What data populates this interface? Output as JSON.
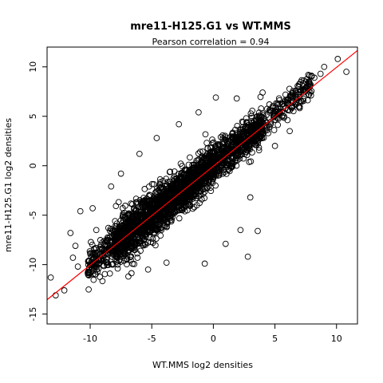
{
  "chart_data": {
    "type": "scatter",
    "title": "mre11-H125.G1 vs WT.MMS",
    "subtitle": "Pearson correlation =  0.94",
    "xlabel": "WT.MMS log2 densities",
    "ylabel": "mre11-H125.G1 log2 densities",
    "xlim": [
      -13.5,
      11.7
    ],
    "ylim": [
      -16.0,
      12.0
    ],
    "x_ticks": [
      -10,
      -5,
      0,
      5,
      10
    ],
    "x_tick_labels": [
      "-10",
      "-5",
      "0",
      "5",
      "10"
    ],
    "y_ticks": [
      -15,
      -10,
      -5,
      0,
      5,
      10
    ],
    "y_tick_labels": [
      "-15",
      "-10",
      "-5",
      "0",
      "5",
      "10"
    ],
    "grid": false,
    "marker": "open-circle",
    "point_color": "#000000",
    "fit_line": {
      "color": "#ff0000",
      "intercept": -0.05,
      "slope": 1.0
    },
    "outlier_points": [
      [
        10.8,
        9.5
      ],
      [
        10.1,
        10.8
      ],
      [
        9.0,
        10.0
      ],
      [
        8.7,
        9.3
      ],
      [
        8.2,
        8.9
      ],
      [
        7.9,
        8.2
      ],
      [
        7.5,
        8.5
      ],
      [
        -12.1,
        -12.6
      ],
      [
        -12.8,
        -13.1
      ],
      [
        -13.2,
        -11.3
      ],
      [
        -11.6,
        -6.8
      ],
      [
        -10.8,
        -4.6
      ],
      [
        -11.2,
        -8.1
      ],
      [
        -9.8,
        -4.3
      ],
      [
        -8.3,
        -2.1
      ],
      [
        -7.5,
        -0.8
      ],
      [
        -6.0,
        1.2
      ],
      [
        -4.6,
        2.8
      ],
      [
        -2.8,
        4.2
      ],
      [
        -1.2,
        5.4
      ],
      [
        0.2,
        6.9
      ],
      [
        1.9,
        6.8
      ],
      [
        2.2,
        -6.5
      ],
      [
        2.8,
        -9.2
      ],
      [
        3.0,
        -3.2
      ],
      [
        3.6,
        -6.6
      ],
      [
        -5.3,
        -10.5
      ],
      [
        -6.9,
        -11.2
      ],
      [
        -8.4,
        -10.9
      ],
      [
        -11.0,
        -10.2
      ],
      [
        -11.4,
        -9.3
      ],
      [
        4.0,
        7.4
      ],
      [
        5.6,
        6.2
      ],
      [
        6.4,
        7.0
      ],
      [
        5.0,
        2.0
      ],
      [
        6.2,
        3.5
      ],
      [
        -3.8,
        -9.8
      ],
      [
        -9.5,
        -6.5
      ],
      [
        1.0,
        -7.9
      ],
      [
        -0.7,
        -9.9
      ]
    ],
    "point_clusters": [
      {
        "x_range": [
          -10.2,
          -8.0
        ],
        "slope": 1.02,
        "intercept": 0.2,
        "spread": 0.95,
        "count": 180
      },
      {
        "x_range": [
          -8.0,
          -4.0
        ],
        "slope": 1.0,
        "intercept": 0.1,
        "spread": 1.15,
        "count": 900
      },
      {
        "x_range": [
          -4.0,
          0.0
        ],
        "slope": 1.0,
        "intercept": 0.0,
        "spread": 1.0,
        "count": 950
      },
      {
        "x_range": [
          0.0,
          4.0
        ],
        "slope": 1.0,
        "intercept": 0.15,
        "spread": 0.9,
        "count": 520
      },
      {
        "x_range": [
          4.0,
          8.0
        ],
        "slope": 1.0,
        "intercept": 0.25,
        "spread": 0.7,
        "count": 170
      }
    ]
  }
}
